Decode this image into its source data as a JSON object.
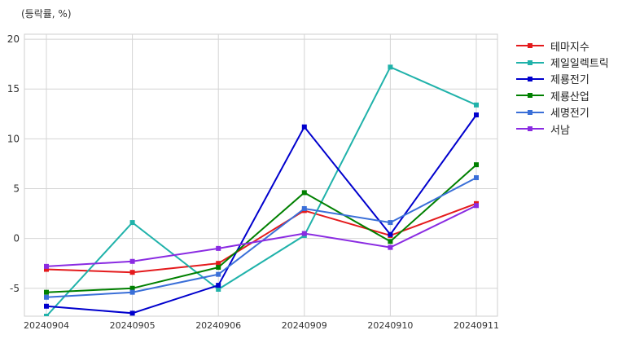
{
  "chart_data": {
    "type": "line",
    "unit_label": "(등락률, %)",
    "categories": [
      "20240904",
      "20240905",
      "20240906",
      "20240909",
      "20240910",
      "20240911"
    ],
    "ylim": [
      -7.8,
      20.5
    ],
    "yticks": [
      -5,
      0,
      5,
      10,
      15,
      20
    ],
    "grid": true,
    "legend_position": "right-top outside",
    "series": [
      {
        "name": "테마지수",
        "color": "#e41a1c",
        "values": [
          -3.1,
          -3.4,
          -2.5,
          2.8,
          0.3,
          3.5
        ]
      },
      {
        "name": "제일일렉트릭",
        "color": "#20b2aa",
        "values": [
          -7.8,
          1.6,
          -5.1,
          0.3,
          17.2,
          13.4
        ]
      },
      {
        "name": "제룡전기",
        "color": "#0000cd",
        "values": [
          -6.8,
          -7.5,
          -4.7,
          11.2,
          0.4,
          12.4
        ]
      },
      {
        "name": "제룡산업",
        "color": "#008000",
        "values": [
          -5.4,
          -5.0,
          -2.9,
          4.6,
          -0.3,
          7.4
        ]
      },
      {
        "name": "세명전기",
        "color": "#3a6fd8",
        "values": [
          -5.9,
          -5.4,
          -3.6,
          3.0,
          1.6,
          6.1
        ]
      },
      {
        "name": "서남",
        "color": "#8a2be2",
        "values": [
          -2.8,
          -2.3,
          -1.0,
          0.5,
          -0.9,
          3.3
        ]
      }
    ]
  }
}
